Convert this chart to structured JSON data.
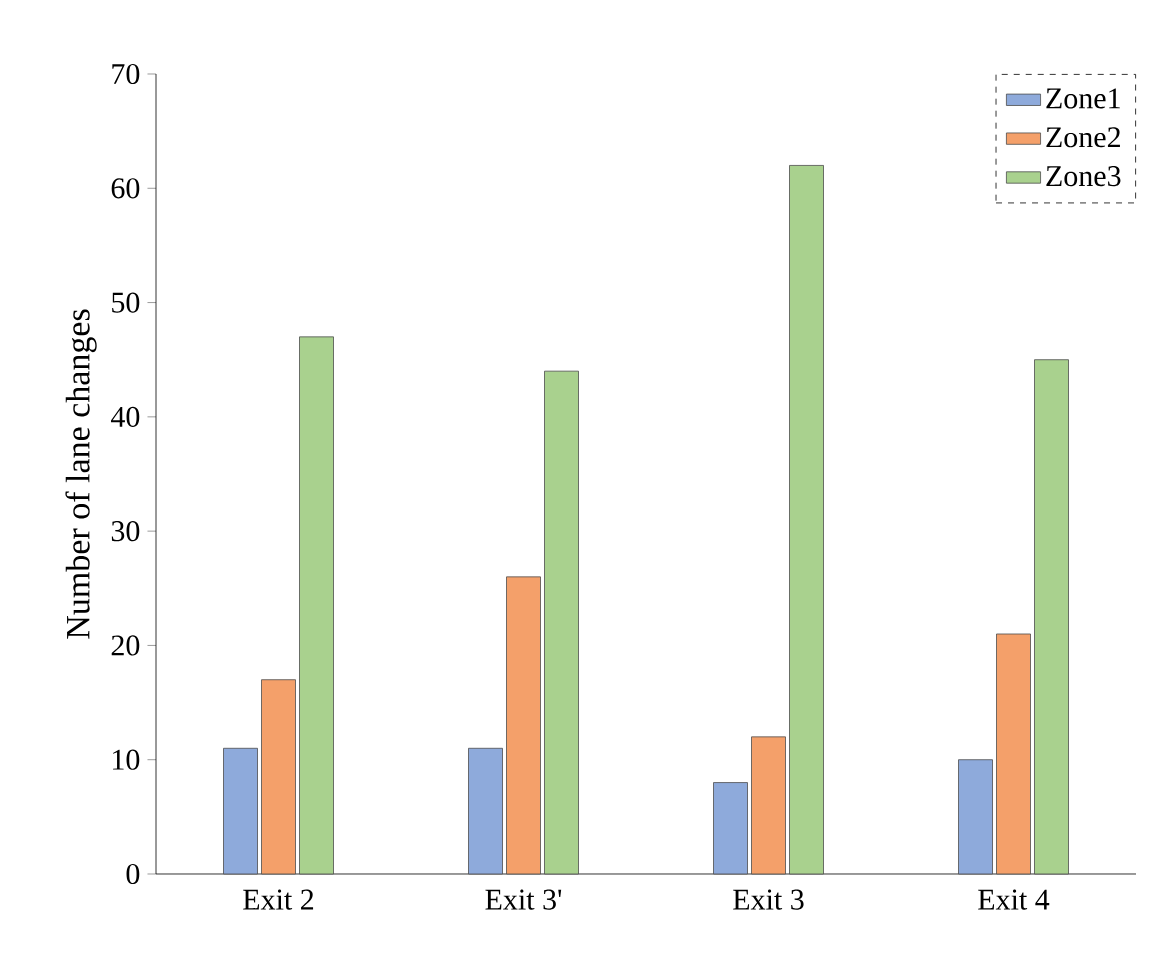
{
  "chart_data": {
    "type": "bar",
    "ylabel": "Number of lane changes",
    "categories": [
      "Exit 2",
      "Exit 3'",
      "Exit 3",
      "Exit 4"
    ],
    "series": [
      {
        "name": "Zone1",
        "color": "#8eaadb",
        "values": [
          11,
          11,
          8,
          10
        ]
      },
      {
        "name": "Zone2",
        "color": "#f4a06a",
        "values": [
          17,
          26,
          12,
          21
        ]
      },
      {
        "name": "Zone3",
        "color": "#a9d18e",
        "values": [
          47,
          44,
          62,
          45
        ]
      }
    ],
    "ylim": [
      0,
      70
    ],
    "yticks": [
      0,
      10,
      20,
      30,
      40,
      50,
      60,
      70
    ],
    "grid": false,
    "legend": "top right"
  }
}
